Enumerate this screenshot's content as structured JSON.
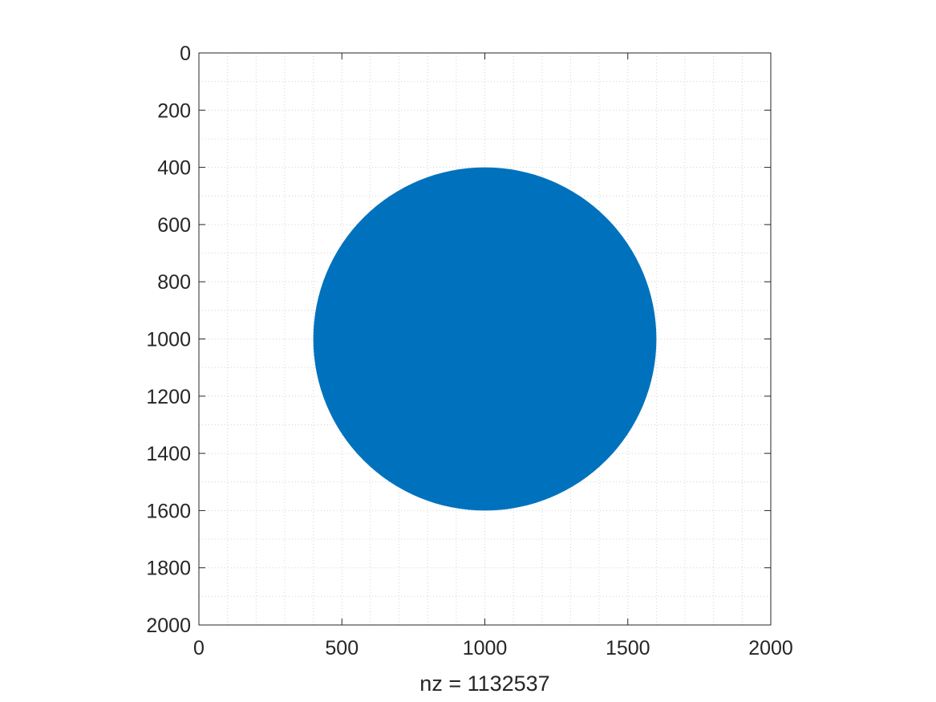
{
  "chart_data": {
    "type": "scatter",
    "plot": "spy",
    "title": "",
    "xlabel": "nz = 1132537",
    "ylabel": "",
    "xlim": [
      0,
      2000
    ],
    "ylim": [
      0,
      2000
    ],
    "y_direction": "reverse",
    "xticks": [
      0,
      500,
      1000,
      1500,
      2000
    ],
    "yticks": [
      0,
      200,
      400,
      600,
      800,
      1000,
      1200,
      1400,
      1600,
      1800,
      2000
    ],
    "xtick_labels": [
      "0",
      "500",
      "1000",
      "1500",
      "2000"
    ],
    "ytick_labels": [
      "0",
      "200",
      "400",
      "600",
      "800",
      "1000",
      "1200",
      "1400",
      "1600",
      "1800",
      "2000"
    ],
    "minor_grid_step": 100,
    "grid": "minor-dotted",
    "shape": {
      "kind": "filled-disk",
      "center": [
        1000,
        1000
      ],
      "radius": 600
    },
    "nz": 1132537,
    "color": "#0072BD"
  }
}
